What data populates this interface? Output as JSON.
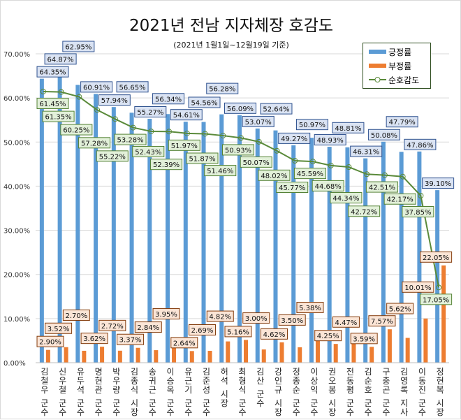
{
  "chart_data": {
    "type": "bar",
    "title": "2021년 전남 지자체장 호감도",
    "subtitle": "(2021년 1월1일~12월19일 기준)",
    "ylim": [
      0,
      70
    ],
    "yticks": [
      "0.00%",
      "10.00%",
      "20.00%",
      "30.00%",
      "40.00%",
      "50.00%",
      "60.00%",
      "70.00%"
    ],
    "grid": true,
    "legend_position": "top-right",
    "categories": [
      "김철우 군수",
      "신우철 군수",
      "유두석 군수",
      "명현관 군수",
      "박우량 군수",
      "김종식 시장",
      "송귀근 군수",
      "이승옥 군수",
      "유근기 군수",
      "김준성 군수",
      "허석 시장",
      "최형식 군수",
      "김산 군수",
      "강인규 시장",
      "정종순 군수",
      "이상익 군수",
      "권오봉 시장",
      "전동평 군수",
      "김순호 군수",
      "구충곤 군수",
      "김영록 지사",
      "이동진 군수",
      "정현복 시장"
    ],
    "series": [
      {
        "name": "긍정률",
        "type": "bar",
        "color": "#5b9bd5",
        "values": [
          64.35,
          64.87,
          62.95,
          60.91,
          57.94,
          56.65,
          55.27,
          56.34,
          54.61,
          54.56,
          56.28,
          56.09,
          53.07,
          52.64,
          49.27,
          50.97,
          48.93,
          48.81,
          46.31,
          50.08,
          47.79,
          47.86,
          39.1
        ]
      },
      {
        "name": "부정률",
        "type": "bar",
        "color": "#ed7d31",
        "values": [
          2.9,
          3.52,
          2.7,
          3.62,
          2.72,
          3.37,
          2.84,
          3.95,
          2.64,
          2.69,
          4.82,
          5.16,
          3.0,
          4.62,
          3.5,
          5.38,
          4.25,
          4.47,
          3.59,
          7.57,
          5.62,
          10.01,
          22.05
        ]
      },
      {
        "name": "순호감도",
        "type": "line",
        "color": "#5a8a3a",
        "values": [
          61.45,
          61.35,
          60.25,
          57.28,
          55.22,
          53.28,
          52.43,
          52.39,
          51.97,
          51.87,
          51.46,
          50.93,
          50.07,
          48.02,
          45.77,
          45.59,
          44.68,
          44.34,
          42.72,
          42.51,
          42.17,
          37.85,
          17.05
        ]
      }
    ]
  }
}
